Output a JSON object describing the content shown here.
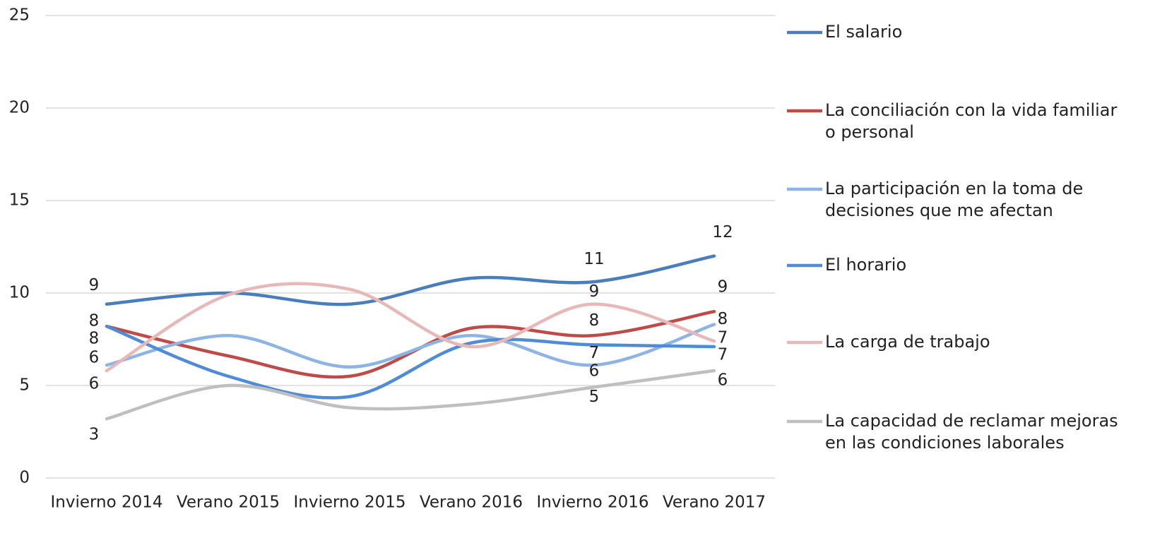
{
  "chart_data": {
    "type": "line",
    "categories": [
      "Invierno 2014",
      "Verano 2015",
      "Invierno 2015",
      "Verano 2016",
      "Invierno 2016",
      "Verano 2017"
    ],
    "series": [
      {
        "name": "El salario",
        "color": "#4a7ebb",
        "values": [
          9.4,
          10.0,
          9.4,
          10.8,
          10.6,
          12.0
        ],
        "value_labels": [
          "9",
          null,
          null,
          null,
          "11",
          "12"
        ]
      },
      {
        "name": "La conciliación con la vida familiar o personal",
        "color": "#be4b48",
        "values": [
          8.2,
          6.6,
          5.5,
          8.1,
          7.7,
          9.0
        ],
        "value_labels": [
          "8",
          null,
          null,
          null,
          "8",
          "9"
        ]
      },
      {
        "name": "La participación en la toma de decisiones que me afectan",
        "color": "#8eb4e3",
        "values": [
          6.1,
          7.7,
          6.0,
          7.7,
          6.1,
          8.3
        ],
        "value_labels": [
          "6",
          null,
          null,
          null,
          "6",
          "8"
        ]
      },
      {
        "name": "El horario",
        "color": "#4f8bd6",
        "values": [
          8.2,
          5.5,
          4.4,
          7.3,
          7.2,
          7.1
        ],
        "value_labels": [
          "8",
          null,
          null,
          null,
          "7",
          "7"
        ]
      },
      {
        "name": "La carga de trabajo",
        "color": "#e6b9b8",
        "values": [
          5.8,
          9.9,
          10.2,
          7.1,
          9.4,
          7.4
        ],
        "value_labels": [
          "6",
          null,
          null,
          null,
          "9",
          "7"
        ]
      },
      {
        "name": "La capacidad de reclamar mejoras en las condiciones laborales",
        "color": "#bfbfbf",
        "values": [
          3.2,
          5.0,
          3.8,
          4.0,
          4.9,
          5.8
        ],
        "value_labels": [
          "3",
          null,
          null,
          null,
          "5",
          "6"
        ]
      }
    ],
    "ylim": [
      0,
      25
    ],
    "yticks": [
      0,
      5,
      10,
      15,
      20,
      25
    ],
    "grid": true,
    "legend": "right",
    "smooth": true
  }
}
